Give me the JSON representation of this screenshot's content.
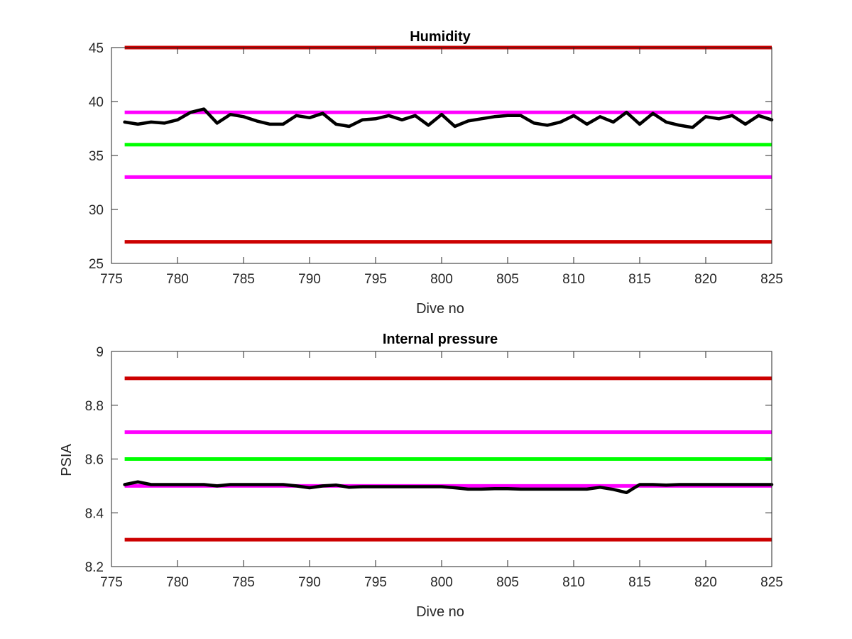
{
  "chart_data": [
    {
      "type": "line",
      "title": "Humidity",
      "xlabel": "Dive no",
      "ylabel": "",
      "xlim": [
        775,
        825
      ],
      "ylim": [
        25,
        45
      ],
      "xticks": [
        775,
        780,
        785,
        790,
        795,
        800,
        805,
        810,
        815,
        820,
        825
      ],
      "yticks": [
        25,
        30,
        35,
        40,
        45
      ],
      "grid": false,
      "threshold_lines": [
        {
          "y": 45,
          "color": "#cc0000"
        },
        {
          "y": 39,
          "color": "#ff00ff"
        },
        {
          "y": 36,
          "color": "#00ff00"
        },
        {
          "y": 33,
          "color": "#ff00ff"
        },
        {
          "y": 27,
          "color": "#cc0000"
        }
      ],
      "series": [
        {
          "color": "#000000",
          "x": [
            776,
            777,
            778,
            779,
            780,
            781,
            782,
            783,
            784,
            785,
            786,
            787,
            788,
            789,
            790,
            791,
            792,
            793,
            794,
            795,
            796,
            797,
            798,
            799,
            800,
            801,
            802,
            803,
            804,
            805,
            806,
            807,
            808,
            809,
            810,
            811,
            812,
            813,
            814,
            815,
            816,
            817,
            818,
            819,
            820,
            821,
            822,
            823,
            824,
            825
          ],
          "y": [
            38.1,
            37.9,
            38.1,
            38.0,
            38.3,
            39.0,
            39.3,
            38.0,
            38.8,
            38.6,
            38.2,
            37.9,
            37.9,
            38.7,
            38.5,
            38.9,
            37.9,
            37.7,
            38.3,
            38.4,
            38.7,
            38.3,
            38.7,
            37.8,
            38.8,
            37.7,
            38.2,
            38.4,
            38.6,
            38.7,
            38.7,
            38.0,
            37.8,
            38.1,
            38.7,
            37.9,
            38.6,
            38.1,
            39.0,
            37.9,
            38.9,
            38.1,
            37.8,
            37.6,
            38.6,
            38.4,
            38.7,
            37.9,
            38.7,
            38.3
          ]
        }
      ]
    },
    {
      "type": "line",
      "title": "Internal pressure",
      "xlabel": "Dive no",
      "ylabel": "PSIA",
      "xlim": [
        775,
        825
      ],
      "ylim": [
        8.2,
        9
      ],
      "xticks": [
        775,
        780,
        785,
        790,
        795,
        800,
        805,
        810,
        815,
        820,
        825
      ],
      "yticks": [
        8.2,
        8.4,
        8.6,
        8.8,
        9
      ],
      "ytick_labels": [
        "8.2",
        "8.4",
        "8.6",
        "8.8",
        "9"
      ],
      "grid": false,
      "threshold_lines": [
        {
          "y": 8.9,
          "color": "#cc0000"
        },
        {
          "y": 8.7,
          "color": "#ff00ff"
        },
        {
          "y": 8.6,
          "color": "#00ff00"
        },
        {
          "y": 8.5,
          "color": "#ff00ff"
        },
        {
          "y": 8.3,
          "color": "#cc0000"
        }
      ],
      "series": [
        {
          "color": "#000000",
          "x": [
            776,
            777,
            778,
            779,
            780,
            781,
            782,
            783,
            784,
            785,
            786,
            787,
            788,
            789,
            790,
            791,
            792,
            793,
            794,
            795,
            796,
            797,
            798,
            799,
            800,
            801,
            802,
            803,
            804,
            805,
            806,
            807,
            808,
            809,
            810,
            811,
            812,
            813,
            814,
            815,
            816,
            817,
            818,
            819,
            820,
            821,
            822,
            823,
            824,
            825
          ],
          "y": [
            8.505,
            8.515,
            8.505,
            8.505,
            8.505,
            8.505,
            8.505,
            8.5,
            8.505,
            8.505,
            8.505,
            8.505,
            8.505,
            8.5,
            8.493,
            8.5,
            8.503,
            8.495,
            8.497,
            8.497,
            8.497,
            8.497,
            8.497,
            8.497,
            8.497,
            8.493,
            8.488,
            8.488,
            8.49,
            8.49,
            8.488,
            8.488,
            8.488,
            8.488,
            8.488,
            8.488,
            8.495,
            8.487,
            8.475,
            8.505,
            8.505,
            8.503,
            8.505,
            8.505,
            8.505,
            8.505,
            8.505,
            8.505,
            8.505,
            8.505
          ]
        }
      ]
    }
  ]
}
